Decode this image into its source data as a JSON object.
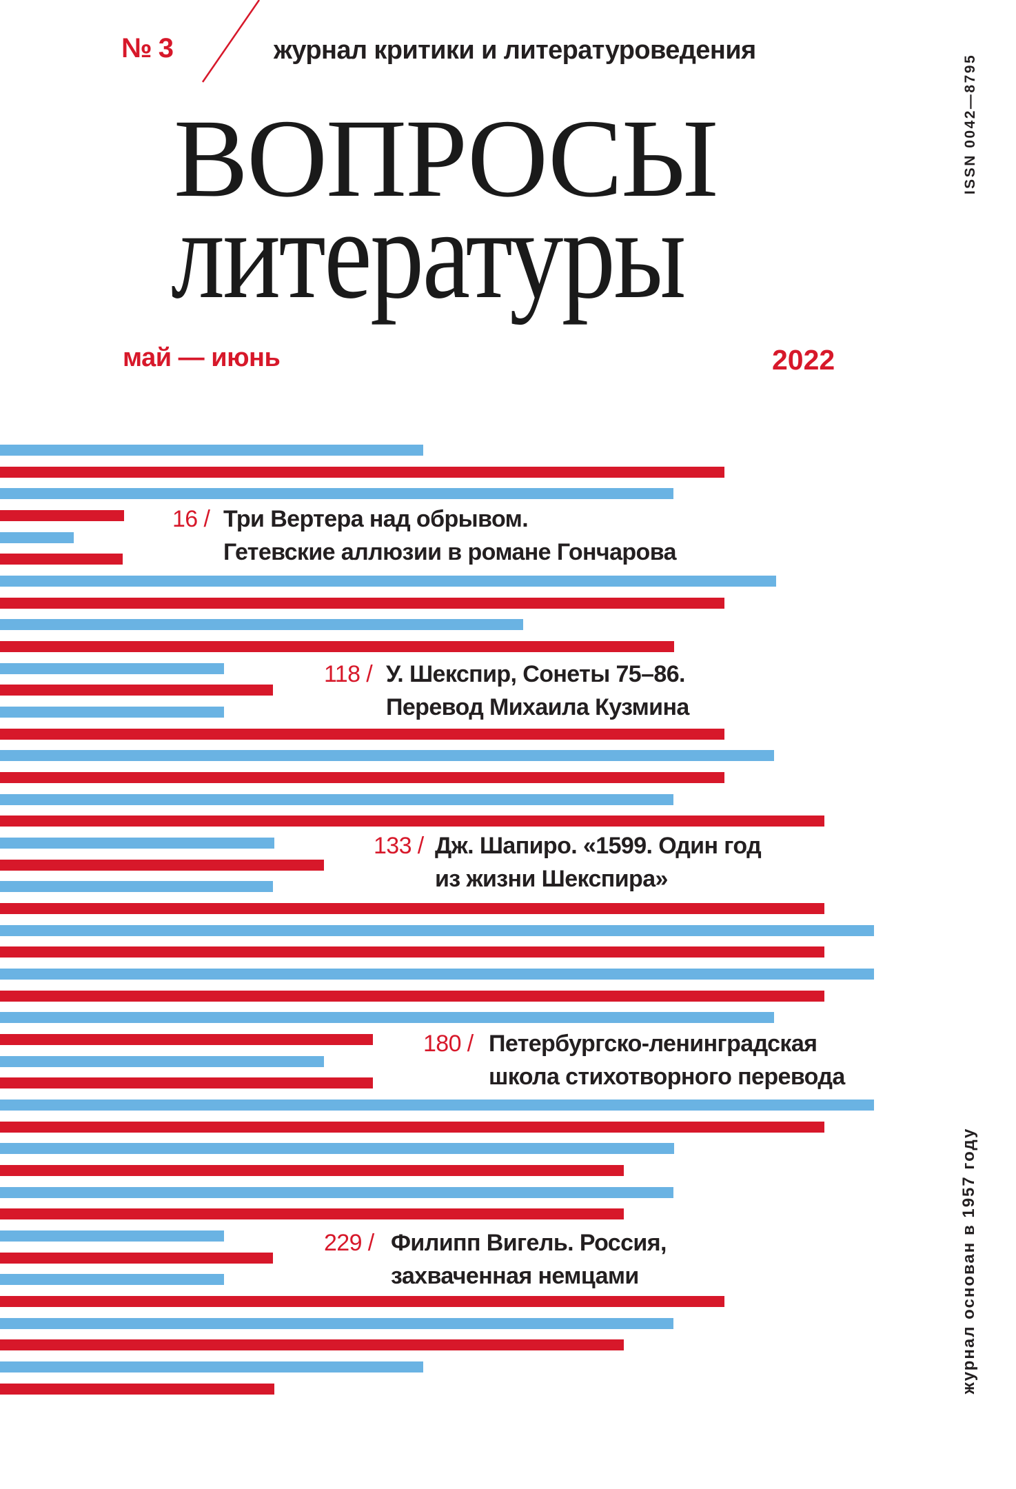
{
  "colors": {
    "red": "#d7182a",
    "blue": "#6ab3e3",
    "text": "#231f20"
  },
  "header": {
    "issue": "№ 3",
    "subtitle": "журнал критики и литературоведения",
    "title_line1": "ВОПРОСЫ",
    "title_line2": "литературы",
    "months": "май — июнь",
    "year": "2022",
    "issn": "ISSN 0042—8795"
  },
  "contents": [
    {
      "page": "16 /",
      "line1": "Три Вертера над обрывом.",
      "line2": "Гетевские аллюзии в романе Гончарова"
    },
    {
      "page": "118 /",
      "line1": "У. Шекспир, Сонеты 75–86.",
      "line2": "Перевод Михаила Кузмина"
    },
    {
      "page": "133 /",
      "line1": "Дж. Шапиро. «1599. Один год",
      "line2": "из жизни Шекспира»"
    },
    {
      "page": "180 /",
      "line1": "Петербургско-ленинградская",
      "line2": "школа стихотворного перевода"
    },
    {
      "page": "229 /",
      "line1": "Филипп Вигель. Россия,",
      "line2": "захваченная немцами"
    }
  ],
  "footer": {
    "founded": "журнал основан в 1957 году"
  }
}
